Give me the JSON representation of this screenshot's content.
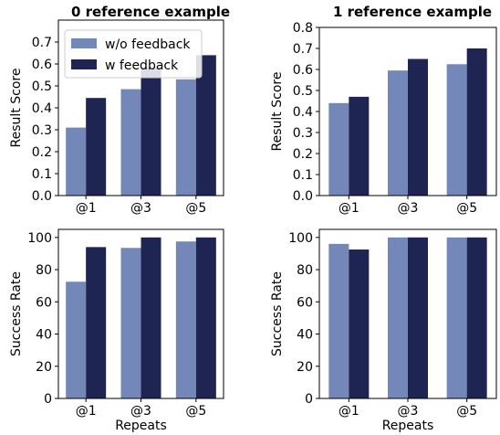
{
  "colors": {
    "wo_feedback": "#7388b8",
    "w_feedback": "#1f2552"
  },
  "chart_data": [
    {
      "type": "bar",
      "title": "0 reference example",
      "xlabel": "",
      "ylabel": "Result Score",
      "categories": [
        "@1",
        "@3",
        "@5"
      ],
      "ylim": [
        0,
        0.8
      ],
      "yticks": [
        "0.0",
        "0.1",
        "0.2",
        "0.3",
        "0.4",
        "0.5",
        "0.6",
        "0.7"
      ],
      "series": [
        {
          "name": "w/o feedback",
          "values": [
            0.31,
            0.485,
            0.53
          ]
        },
        {
          "name": "w feedback",
          "values": [
            0.445,
            0.585,
            0.64
          ]
        }
      ],
      "legend": "top-left"
    },
    {
      "type": "bar",
      "title": "1 reference example",
      "xlabel": "",
      "ylabel": "Result Score",
      "categories": [
        "@1",
        "@3",
        "@5"
      ],
      "ylim": [
        0,
        0.8
      ],
      "yticks": [
        "0.0",
        "0.1",
        "0.2",
        "0.3",
        "0.4",
        "0.5",
        "0.6",
        "0.7",
        "0.8"
      ],
      "series": [
        {
          "name": "w/o feedback",
          "values": [
            0.44,
            0.595,
            0.625
          ]
        },
        {
          "name": "w feedback",
          "values": [
            0.47,
            0.65,
            0.7
          ]
        }
      ]
    },
    {
      "type": "bar",
      "title": "",
      "xlabel": "Repeats",
      "ylabel": "Success Rate",
      "categories": [
        "@1",
        "@3",
        "@5"
      ],
      "ylim": [
        0,
        105
      ],
      "yticks": [
        "0",
        "20",
        "40",
        "60",
        "80",
        "100"
      ],
      "series": [
        {
          "name": "w/o feedback",
          "values": [
            72.5,
            93.5,
            97.5
          ]
        },
        {
          "name": "w feedback",
          "values": [
            94,
            100,
            100
          ]
        }
      ]
    },
    {
      "type": "bar",
      "title": "",
      "xlabel": "Repeats",
      "ylabel": "Success Rate",
      "categories": [
        "@1",
        "@3",
        "@5"
      ],
      "ylim": [
        0,
        105
      ],
      "yticks": [
        "0",
        "20",
        "40",
        "60",
        "80",
        "100"
      ],
      "series": [
        {
          "name": "w/o feedback",
          "values": [
            96,
            100,
            100
          ]
        },
        {
          "name": "w feedback",
          "values": [
            92.5,
            100,
            100
          ]
        }
      ]
    }
  ]
}
